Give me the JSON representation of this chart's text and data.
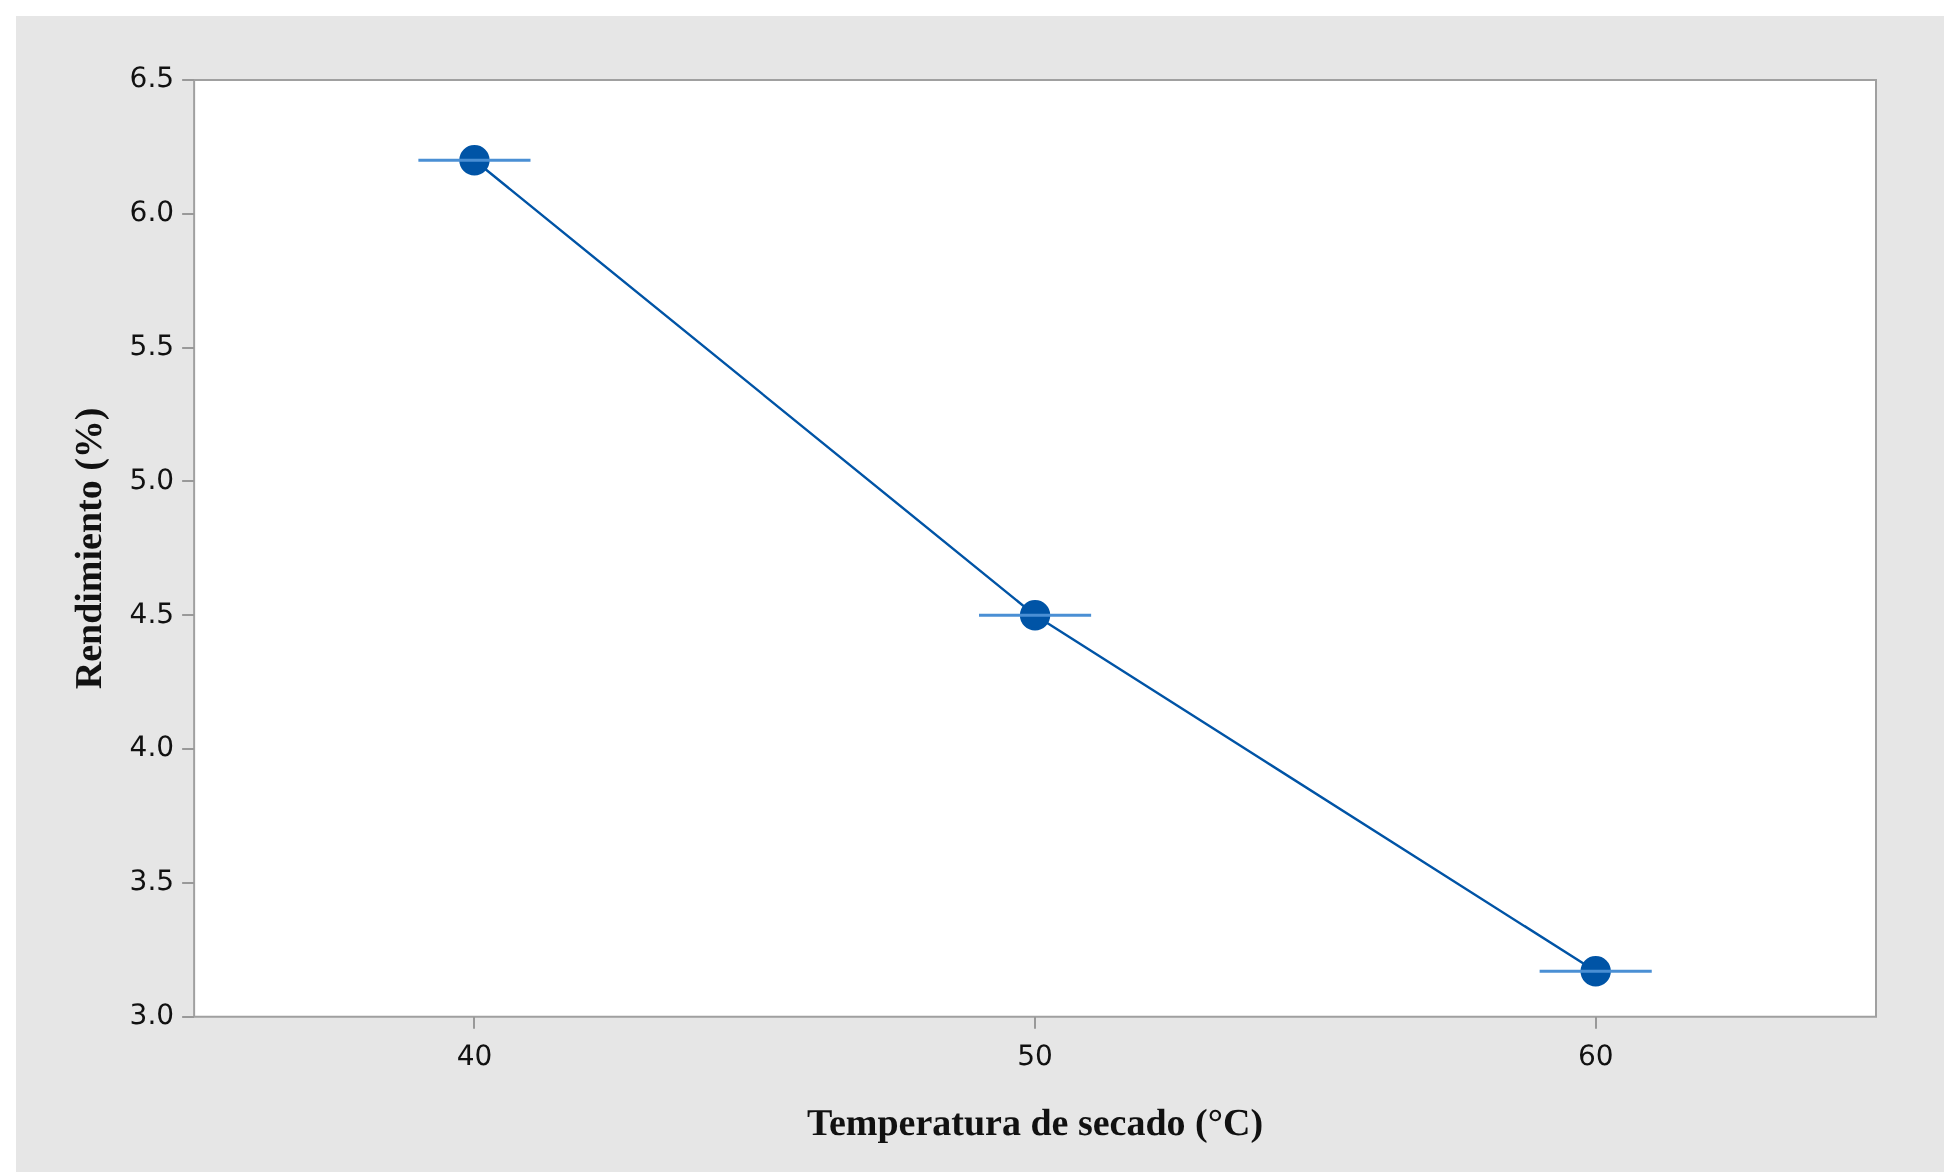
{
  "chart_data": {
    "type": "line",
    "xlabel": "Temperatura de secado (°C)",
    "ylabel": "Rendimiento (%)",
    "x": [
      40,
      50,
      60
    ],
    "series": [
      {
        "color": "#0054a6",
        "values": [
          6.2,
          4.5,
          3.17
        ],
        "xerrors": [
          1,
          1,
          1
        ]
      }
    ],
    "xlim": [
      35,
      65
    ],
    "xticks": [
      40,
      50,
      60
    ],
    "ylim": [
      3.0,
      6.5
    ],
    "yticks": [
      {
        "value": 3.0,
        "label": "3.0"
      },
      {
        "value": 3.5,
        "label": "3.5"
      },
      {
        "value": 4.0,
        "label": "4.0"
      },
      {
        "value": 4.5,
        "label": "4.5"
      },
      {
        "value": 5.0,
        "label": "5.0"
      },
      {
        "value": 5.5,
        "label": "5.5"
      },
      {
        "value": 6.0,
        "label": "6.0"
      },
      {
        "value": 6.5,
        "label": "6.5"
      }
    ],
    "grid": false,
    "legend": false,
    "marker": "circle",
    "line_style": "solid"
  }
}
